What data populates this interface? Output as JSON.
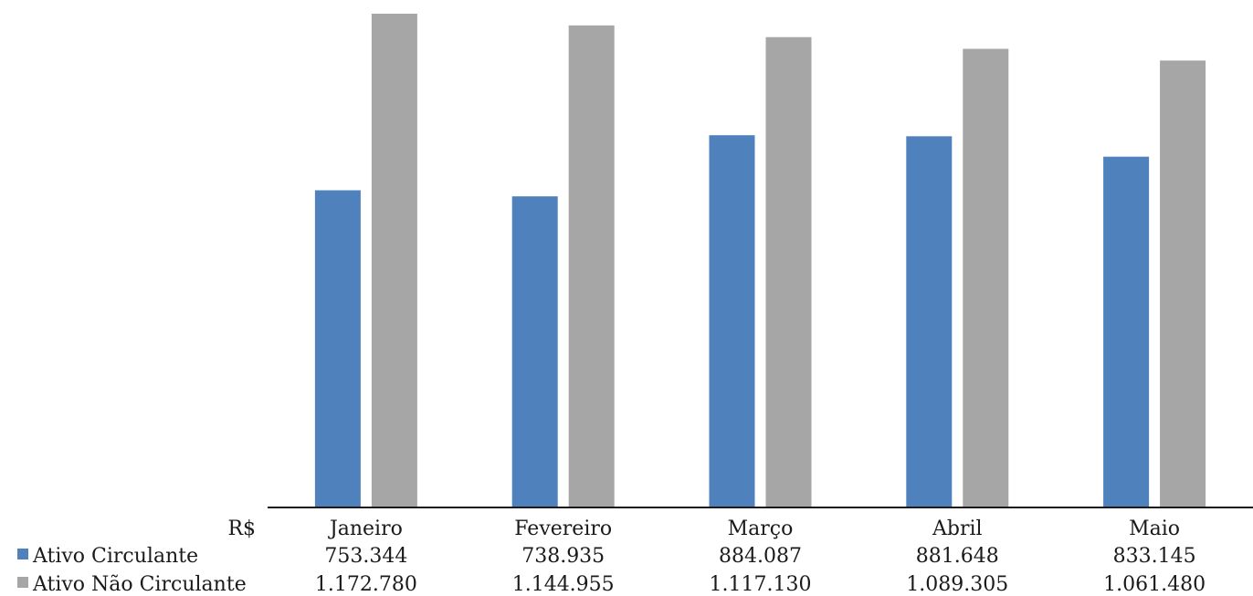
{
  "chart_data": {
    "type": "bar",
    "unit_label": "R$",
    "categories": [
      "Janeiro",
      "Fevereiro",
      "Março",
      "Abril",
      "Maio"
    ],
    "series": [
      {
        "name": "Ativo Circulante",
        "color": "#4f81bd",
        "values": [
          753344,
          738935,
          884087,
          881648,
          833145
        ],
        "labels": [
          "753.344",
          "738.935",
          "884.087",
          "881.648",
          "833.145"
        ]
      },
      {
        "name": "Ativo Não Circulante",
        "color": "#a6a6a6",
        "values": [
          1172780,
          1144955,
          1117130,
          1089305,
          1061480
        ],
        "labels": [
          "1.172.780",
          "1.144.955",
          "1.117.130",
          "1.089.305",
          "1.061.480"
        ]
      }
    ],
    "ylim": [
      0,
      1200000
    ],
    "grid": false,
    "legend": "data-table"
  }
}
